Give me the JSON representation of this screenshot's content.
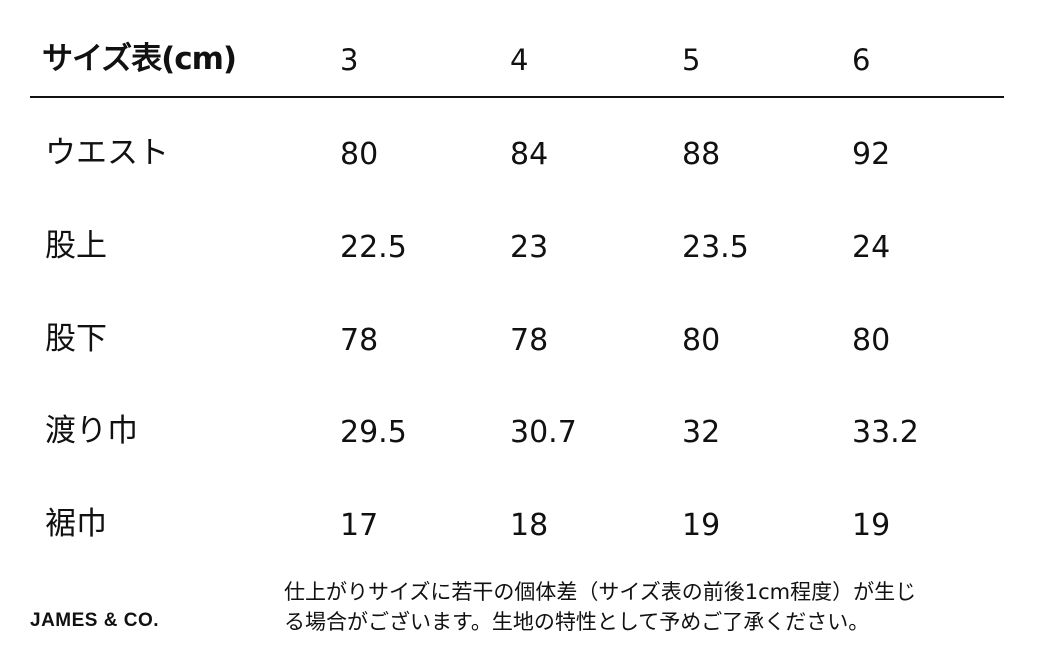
{
  "table": {
    "title": "サイズ表(cm)",
    "sizes": [
      "3",
      "4",
      "5",
      "6"
    ],
    "rows": [
      {
        "label": "ウエスト",
        "values": [
          "80",
          "84",
          "88",
          "92"
        ]
      },
      {
        "label": "股上",
        "values": [
          "22.5",
          "23",
          "23.5",
          "24"
        ]
      },
      {
        "label": "股下",
        "values": [
          "78",
          "78",
          "80",
          "80"
        ]
      },
      {
        "label": "渡り巾",
        "values": [
          "29.5",
          "30.7",
          "32",
          "33.2"
        ]
      },
      {
        "label": "裾巾",
        "values": [
          "17",
          "18",
          "19",
          "19"
        ]
      }
    ]
  },
  "footer": {
    "brand": "JAMES & CO.",
    "note_line1": "仕上がりサイズに若干の個体差（サイズ表の前後1cm程度）が生じ",
    "note_line2": "る場合がございます。生地の特性として予めご了承ください。"
  }
}
